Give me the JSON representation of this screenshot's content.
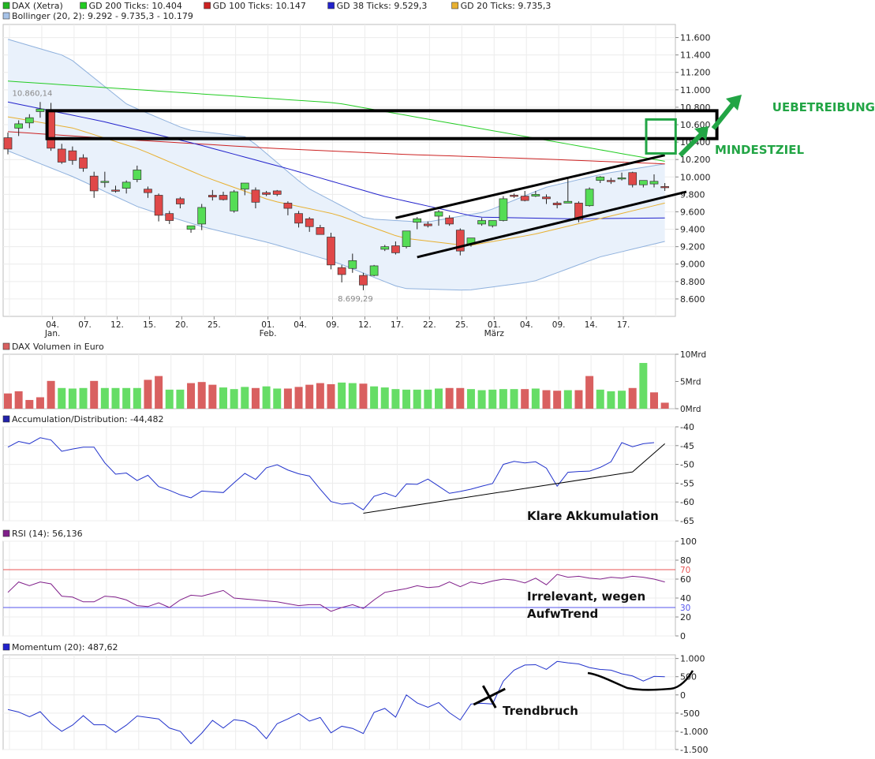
{
  "chart_data": [
    {
      "type": "candlestick",
      "panel": "price",
      "legend": [
        {
          "label": "DAX (Xetra)",
          "color": "#22b522"
        },
        {
          "label": "GD 200 Ticks: 10.404",
          "color": "#22cc22"
        },
        {
          "label": "GD 100 Ticks: 10.147",
          "color": "#cc2222"
        },
        {
          "label": "GD 38 Ticks: 9.529,3",
          "color": "#2222cc"
        },
        {
          "label": "GD 20 Ticks: 9.735,3",
          "color": "#e8b030"
        },
        {
          "label": "Bollinger (20, 2): 9.292 - 9.735,3 - 10.179",
          "color": "#a7c3e8"
        }
      ],
      "ylim": [
        8400,
        11750
      ],
      "yticks": [
        8600,
        8800,
        9000,
        9200,
        9400,
        9600,
        9800,
        10000,
        10200,
        10400,
        10600,
        10800,
        11000,
        11200,
        11400,
        11600
      ],
      "ytick_labels": [
        "8.600",
        "8.800",
        "9.000",
        "9.200",
        "9.400",
        "9.600",
        "9.800",
        "10.000",
        "10.200",
        "10.400",
        "10.600",
        "10.800",
        "11.000",
        "11.200",
        "11.400",
        "11.600"
      ],
      "xticks": [
        {
          "idx": 4,
          "label": "04.",
          "sub": "Jan."
        },
        {
          "idx": 7,
          "label": "07.",
          "sub": ""
        },
        {
          "idx": 10,
          "label": "12.",
          "sub": ""
        },
        {
          "idx": 13,
          "label": "15.",
          "sub": ""
        },
        {
          "idx": 16,
          "label": "20.",
          "sub": ""
        },
        {
          "idx": 19,
          "label": "25.",
          "sub": ""
        },
        {
          "idx": 24,
          "label": "01.",
          "sub": "Feb."
        },
        {
          "idx": 27,
          "label": "04.",
          "sub": ""
        },
        {
          "idx": 30,
          "label": "09.",
          "sub": ""
        },
        {
          "idx": 33,
          "label": "12.",
          "sub": ""
        },
        {
          "idx": 36,
          "label": "17.",
          "sub": ""
        },
        {
          "idx": 39,
          "label": "22.",
          "sub": ""
        },
        {
          "idx": 42,
          "label": "25.",
          "sub": ""
        },
        {
          "idx": 45,
          "label": "01.",
          "sub": "März"
        },
        {
          "idx": 48,
          "label": "04.",
          "sub": ""
        },
        {
          "idx": 51,
          "label": "09.",
          "sub": ""
        },
        {
          "idx": 54,
          "label": "14.",
          "sub": ""
        },
        {
          "idx": 57,
          "label": "17.",
          "sub": ""
        }
      ],
      "candles": [
        [
          10450,
          10510,
          10260,
          10320
        ],
        [
          10560,
          10650,
          10470,
          10610
        ],
        [
          10620,
          10720,
          10560,
          10680
        ],
        [
          10750,
          10860,
          10680,
          10780
        ],
        [
          10760,
          10850,
          10300,
          10330
        ],
        [
          10320,
          10380,
          10150,
          10170
        ],
        [
          10300,
          10350,
          10140,
          10190
        ],
        [
          10220,
          10260,
          10060,
          10100
        ],
        [
          10010,
          10060,
          9760,
          9840
        ],
        [
          9950,
          10060,
          9880,
          9950
        ],
        [
          9850,
          9900,
          9820,
          9840
        ],
        [
          9870,
          9960,
          9810,
          9940
        ],
        [
          9970,
          10130,
          9940,
          10080
        ],
        [
          9860,
          9890,
          9760,
          9820
        ],
        [
          9790,
          9810,
          9490,
          9560
        ],
        [
          9580,
          9610,
          9460,
          9500
        ],
        [
          9750,
          9770,
          9640,
          9690
        ],
        [
          9400,
          9420,
          9360,
          9440
        ],
        [
          9460,
          9690,
          9390,
          9650
        ],
        [
          9790,
          9850,
          9730,
          9770
        ],
        [
          9790,
          9830,
          9730,
          9740
        ],
        [
          9610,
          9850,
          9590,
          9830
        ],
        [
          9860,
          9920,
          9790,
          9930
        ],
        [
          9850,
          9880,
          9640,
          9710
        ],
        [
          9820,
          9840,
          9780,
          9800
        ],
        [
          9840,
          9850,
          9780,
          9800
        ],
        [
          9700,
          9720,
          9560,
          9640
        ],
        [
          9580,
          9610,
          9420,
          9470
        ],
        [
          9520,
          9540,
          9370,
          9430
        ],
        [
          9420,
          9450,
          9340,
          9340
        ],
        [
          9310,
          9360,
          8940,
          8990
        ],
        [
          8960,
          8990,
          8790,
          8880
        ],
        [
          8950,
          9120,
          8900,
          9040
        ],
        [
          8870,
          8900,
          8700,
          8760
        ],
        [
          8870,
          8990,
          8860,
          8980
        ],
        [
          9170,
          9220,
          9150,
          9200
        ],
        [
          9210,
          9260,
          9110,
          9130
        ],
        [
          9200,
          9380,
          9180,
          9380
        ],
        [
          9480,
          9540,
          9400,
          9520
        ],
        [
          9460,
          9490,
          9420,
          9440
        ],
        [
          9550,
          9620,
          9440,
          9600
        ],
        [
          9530,
          9560,
          9440,
          9460
        ],
        [
          9390,
          9410,
          9100,
          9150
        ],
        [
          9230,
          9300,
          9200,
          9300
        ],
        [
          9460,
          9530,
          9440,
          9500
        ],
        [
          9440,
          9480,
          9420,
          9500
        ],
        [
          9500,
          9780,
          9490,
          9750
        ],
        [
          9790,
          9810,
          9760,
          9780
        ],
        [
          9780,
          9840,
          9720,
          9730
        ],
        [
          9780,
          9840,
          9770,
          9800
        ],
        [
          9770,
          9800,
          9690,
          9750
        ],
        [
          9700,
          9720,
          9640,
          9680
        ],
        [
          9700,
          9980,
          9700,
          9720
        ],
        [
          9700,
          9720,
          9480,
          9510
        ],
        [
          9670,
          9880,
          9660,
          9860
        ],
        [
          9960,
          10010,
          9930,
          10000
        ],
        [
          9960,
          9990,
          9920,
          9950
        ],
        [
          9980,
          10050,
          9960,
          9990
        ],
        [
          10050,
          10060,
          9880,
          9910
        ],
        [
          9910,
          9960,
          9880,
          9960
        ],
        [
          9920,
          10030,
          9880,
          9950
        ],
        [
          9890,
          9930,
          9840,
          9880
        ]
      ],
      "sma200": [
        11100,
        10850,
        10180
      ],
      "sma100": [
        10520,
        10420,
        10330,
        10260,
        10210,
        10150
      ],
      "sma38": [
        10860,
        10640,
        10380,
        10090,
        9780,
        9540,
        9520,
        9530
      ],
      "sma20": [
        10690,
        10560,
        10320,
        10000,
        9730,
        9570,
        9300,
        9210,
        9340,
        9520,
        9700
      ],
      "bb_upper": [
        11580,
        11380,
        10830,
        10540,
        10460,
        9880,
        9520,
        9480,
        9600,
        9880,
        10040,
        10150
      ],
      "bb_lower": [
        10300,
        10000,
        9650,
        9420,
        9240,
        9020,
        8720,
        8700,
        8800,
        9080,
        9260
      ],
      "annotation_labels": [
        {
          "text": "10.860,14",
          "idx": 3,
          "y": 10860
        },
        {
          "text": "8.699,29",
          "idx": 33,
          "y": 8699
        }
      ],
      "channel_upper": [
        [
          36,
          9530
        ],
        [
          61,
          10250
        ]
      ],
      "channel_lower": [
        [
          38,
          9080
        ],
        [
          63,
          9830
        ]
      ],
      "zone_box": {
        "from_idx": 4,
        "to_idx": 64,
        "y_top": 10760,
        "y_bottom": 10440
      },
      "small_box": {
        "from_idx": 60,
        "to_idx": 62,
        "y_top": 10660,
        "y_bottom": 10270
      },
      "annotations": [
        {
          "text": "UEBETREIBUNG",
          "color": "#22a545"
        },
        {
          "text": "MINDESTZIEL",
          "color": "#22a545"
        }
      ]
    },
    {
      "type": "bar",
      "panel": "volume",
      "legend": [
        {
          "label": "DAX Volumen in Euro",
          "color": "#d96060"
        }
      ],
      "ylim": [
        0,
        10
      ],
      "yticks": [
        0,
        5,
        10
      ],
      "ytick_labels": [
        "0Mrd",
        "5Mrd",
        "10Mrd"
      ],
      "values": [
        2.8,
        3.2,
        1.6,
        2.1,
        5.1,
        3.8,
        3.7,
        3.8,
        5.1,
        3.8,
        3.8,
        3.8,
        3.8,
        5.3,
        6.0,
        3.5,
        3.5,
        4.7,
        4.9,
        4.4,
        3.9,
        3.6,
        4.0,
        3.8,
        4.1,
        3.7,
        3.7,
        4.0,
        4.4,
        4.7,
        4.5,
        4.8,
        4.7,
        4.6,
        4.1,
        3.9,
        3.6,
        3.5,
        3.5,
        3.5,
        3.7,
        3.8,
        3.8,
        3.6,
        3.4,
        3.5,
        3.6,
        3.6,
        3.6,
        3.7,
        3.4,
        3.3,
        3.4,
        3.4,
        6.0,
        3.5,
        3.2,
        3.3,
        3.8,
        8.4,
        3.0,
        1.1
      ],
      "colors": [
        "r",
        "r",
        "r",
        "r",
        "r",
        "g",
        "g",
        "g",
        "r",
        "g",
        "g",
        "g",
        "g",
        "r",
        "r",
        "g",
        "g",
        "r",
        "r",
        "r",
        "g",
        "g",
        "g",
        "r",
        "g",
        "g",
        "r",
        "r",
        "r",
        "r",
        "r",
        "g",
        "g",
        "r",
        "g",
        "g",
        "g",
        "g",
        "g",
        "g",
        "g",
        "r",
        "r",
        "g",
        "g",
        "g",
        "g",
        "g",
        "r",
        "g",
        "r",
        "r",
        "g",
        "r",
        "r",
        "g",
        "g",
        "g",
        "r",
        "g",
        "r",
        "r"
      ]
    },
    {
      "type": "line",
      "panel": "accumulation",
      "legend": [
        {
          "label": "Accumulation/Distribution: -44,482",
          "color": "#2222aa"
        }
      ],
      "ylim": [
        -65,
        -40
      ],
      "yticks": [
        -65,
        -60,
        -55,
        -50,
        -45,
        -40
      ],
      "ytick_labels": [
        "-65",
        "-60",
        "-55",
        "-50",
        "-45",
        "-40"
      ],
      "values": [
        -45.4,
        -43.9,
        -44.5,
        -42.9,
        -43.5,
        -46.5,
        -45.9,
        -45.4,
        -45.4,
        -49.6,
        -52.6,
        -52.3,
        -54.3,
        -52.9,
        -55.9,
        -56.9,
        -58.1,
        -58.9,
        -57.1,
        -57.3,
        -57.5,
        -54.9,
        -52.4,
        -54.0,
        -50.9,
        -50.1,
        -51.5,
        -52.5,
        -53.1,
        -56.6,
        -59.9,
        -60.6,
        -60.3,
        -62.1,
        -58.5,
        -57.6,
        -58.6,
        -55.2,
        -55.3,
        -53.9,
        -55.8,
        -57.7,
        -57.2,
        -56.6,
        -55.8,
        -55.1,
        -50.0,
        -49.2,
        -49.6,
        -49.3,
        -51.0,
        -55.8,
        -52.1,
        -51.9,
        -51.8,
        -50.8,
        -49.3,
        -44.2,
        -45.3,
        -44.5,
        -44.2
      ],
      "trend_line": [
        [
          33,
          -63
        ],
        [
          58,
          -52
        ],
        [
          61,
          -44.5
        ]
      ],
      "annotations": [
        {
          "text": "Klare Akkumulation"
        }
      ]
    },
    {
      "type": "line",
      "panel": "rsi",
      "legend": [
        {
          "label": "RSI (14): 56,136",
          "color": "#801f8a"
        }
      ],
      "ylim": [
        0,
        100
      ],
      "yticks": [
        0,
        20,
        40,
        60,
        80,
        100
      ],
      "ytick_labels": [
        "0",
        "20",
        "40",
        "60",
        "80",
        "100"
      ],
      "ref_lines": [
        {
          "value": 70,
          "label": "70",
          "color": "#e85555"
        },
        {
          "value": 30,
          "label": "30",
          "color": "#5555ee"
        }
      ],
      "values": [
        46,
        57,
        53,
        57,
        55,
        42,
        41,
        36,
        36,
        42,
        41,
        38,
        32,
        31,
        35,
        30,
        38,
        43,
        42,
        45,
        48,
        40,
        39,
        38,
        37,
        36,
        34,
        32,
        33,
        33,
        26,
        30,
        33,
        29,
        38,
        46,
        48,
        50,
        53,
        51,
        52,
        57,
        52,
        57,
        55,
        58,
        60,
        59,
        56,
        61,
        54,
        65,
        62,
        63,
        61,
        60,
        62,
        61,
        63,
        62,
        60,
        57
      ],
      "annotations": [
        {
          "text": "Irrelevant, wegen"
        },
        {
          "text": "AufwTrend"
        }
      ]
    },
    {
      "type": "line",
      "panel": "momentum",
      "legend": [
        {
          "label": "Momentum (20): 487,62",
          "color": "#2222cc"
        }
      ],
      "ylim": [
        -1500,
        1100
      ],
      "yticks": [
        -1500,
        -1000,
        -500,
        0,
        500,
        1000
      ],
      "ytick_labels": [
        "-1.500",
        "-1.000",
        "-500",
        "0",
        "500",
        "1.000"
      ],
      "values": [
        -400,
        -470,
        -600,
        -460,
        -780,
        -1000,
        -830,
        -570,
        -820,
        -820,
        -1030,
        -830,
        -580,
        -620,
        -660,
        -910,
        -1000,
        -1340,
        -1050,
        -700,
        -910,
        -680,
        -720,
        -880,
        -1200,
        -790,
        -660,
        -510,
        -720,
        -620,
        -1040,
        -860,
        -920,
        -1060,
        -480,
        -370,
        -610,
        0,
        -220,
        -340,
        -210,
        -490,
        -690,
        -250,
        -230,
        -250,
        380,
        680,
        820,
        830,
        700,
        920,
        880,
        850,
        750,
        700,
        680,
        580,
        520,
        380,
        510,
        500
      ],
      "trend_break_idx": 45,
      "annotations": [
        {
          "text": "Trendbruch"
        }
      ]
    }
  ]
}
